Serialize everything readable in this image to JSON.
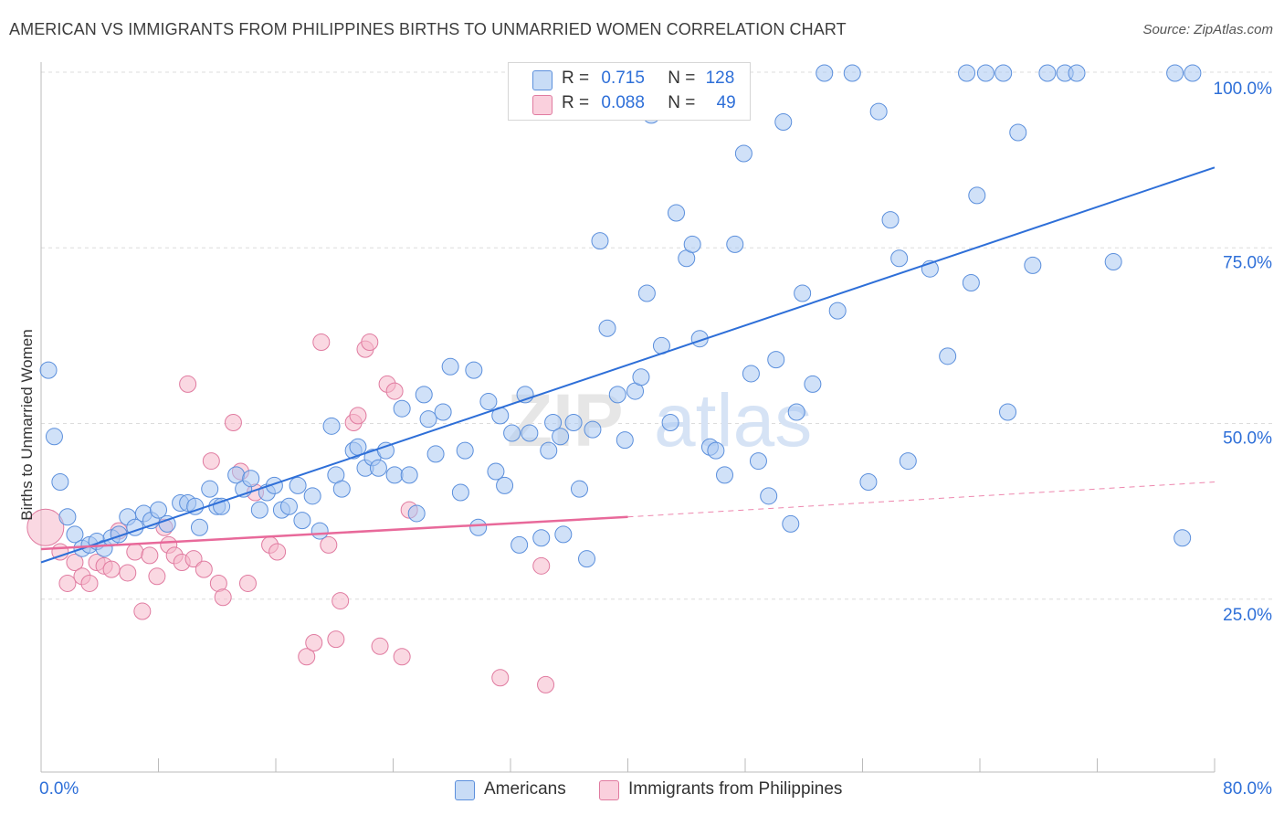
{
  "title": "AMERICAN VS IMMIGRANTS FROM PHILIPPINES BIRTHS TO UNMARRIED WOMEN CORRELATION CHART",
  "source": "Source: ZipAtlas.com",
  "watermark": {
    "zip": "ZIP",
    "atlas": "atlas"
  },
  "legend": {
    "r_label": "R =",
    "n_label": "N =",
    "rows": [
      {
        "name": "Americans",
        "r": "0.715",
        "n": "128",
        "color": "#a9c8f2",
        "edge": "#5b8fdc"
      },
      {
        "name": "Immigrants from Philippines",
        "r": "0.088",
        "n": "49",
        "color": "#f6b8cb",
        "edge": "#e07ba0"
      }
    ]
  },
  "chart_data": {
    "type": "scatter",
    "title": "AMERICAN VS IMMIGRANTS FROM PHILIPPINES BIRTHS TO UNMARRIED WOMEN CORRELATION CHART",
    "xlabel": "",
    "ylabel": "Births to Unmarried Women",
    "xlim": [
      0,
      80
    ],
    "ylim": [
      0,
      100
    ],
    "x_tick_labels": [
      "0.0%",
      "80.0%"
    ],
    "y_tick_labels": [
      "25.0%",
      "50.0%",
      "75.0%",
      "100.0%"
    ],
    "y_ticks": [
      25,
      50,
      75,
      100
    ],
    "grid": true,
    "series": [
      {
        "name": "Americans",
        "color": "#a9c8f2",
        "edge": "#5b8fdc",
        "trend": {
          "x0": 0,
          "y0": 30.0,
          "x1": 80,
          "y1": 86.5,
          "color": "#2e6fd8"
        },
        "points": [
          [
            0.5,
            57.5
          ],
          [
            0.9,
            48.0
          ],
          [
            1.3,
            41.5
          ],
          [
            1.8,
            36.5
          ],
          [
            2.3,
            34.0
          ],
          [
            2.8,
            32.0
          ],
          [
            3.3,
            32.5
          ],
          [
            3.8,
            33.0
          ],
          [
            4.3,
            32.0
          ],
          [
            4.8,
            33.5
          ],
          [
            5.3,
            34.0
          ],
          [
            5.9,
            36.5
          ],
          [
            6.4,
            35.0
          ],
          [
            7.0,
            37.0
          ],
          [
            7.5,
            36.0
          ],
          [
            8.0,
            37.5
          ],
          [
            8.6,
            35.5
          ],
          [
            9.5,
            38.5
          ],
          [
            10.0,
            38.5
          ],
          [
            10.5,
            38.0
          ],
          [
            10.8,
            35.0
          ],
          [
            11.5,
            40.5
          ],
          [
            12.0,
            38.0
          ],
          [
            12.3,
            38.0
          ],
          [
            13.3,
            42.5
          ],
          [
            13.8,
            40.5
          ],
          [
            14.3,
            42.0
          ],
          [
            14.9,
            37.5
          ],
          [
            15.4,
            40.0
          ],
          [
            15.9,
            41.0
          ],
          [
            16.4,
            37.5
          ],
          [
            16.9,
            38.0
          ],
          [
            17.5,
            41.0
          ],
          [
            17.8,
            36.0
          ],
          [
            18.5,
            39.5
          ],
          [
            19.0,
            34.5
          ],
          [
            19.8,
            49.5
          ],
          [
            20.1,
            42.5
          ],
          [
            20.5,
            40.5
          ],
          [
            21.3,
            46.0
          ],
          [
            21.6,
            46.5
          ],
          [
            22.1,
            43.5
          ],
          [
            22.6,
            45.0
          ],
          [
            23.0,
            43.5
          ],
          [
            23.5,
            46.0
          ],
          [
            24.1,
            42.5
          ],
          [
            24.6,
            52.0
          ],
          [
            25.1,
            42.5
          ],
          [
            25.6,
            37.0
          ],
          [
            26.1,
            54.0
          ],
          [
            26.4,
            50.5
          ],
          [
            26.9,
            45.5
          ],
          [
            27.4,
            51.5
          ],
          [
            27.9,
            58.0
          ],
          [
            28.6,
            40.0
          ],
          [
            28.9,
            46.0
          ],
          [
            29.5,
            57.5
          ],
          [
            29.8,
            35.0
          ],
          [
            30.5,
            53.0
          ],
          [
            31.0,
            43.0
          ],
          [
            31.3,
            51.0
          ],
          [
            31.6,
            41.0
          ],
          [
            32.1,
            48.5
          ],
          [
            32.6,
            32.5
          ],
          [
            33.0,
            54.0
          ],
          [
            33.3,
            48.5
          ],
          [
            34.1,
            33.5
          ],
          [
            34.6,
            46.0
          ],
          [
            34.9,
            50.0
          ],
          [
            35.4,
            48.0
          ],
          [
            35.6,
            34.0
          ],
          [
            36.3,
            50.0
          ],
          [
            36.7,
            40.5
          ],
          [
            37.2,
            30.5
          ],
          [
            37.6,
            49.0
          ],
          [
            38.1,
            76.0
          ],
          [
            38.6,
            63.5
          ],
          [
            39.3,
            54.0
          ],
          [
            39.8,
            47.5
          ],
          [
            40.5,
            54.5
          ],
          [
            40.9,
            56.5
          ],
          [
            41.3,
            68.5
          ],
          [
            41.6,
            94.0
          ],
          [
            42.3,
            61.0
          ],
          [
            42.9,
            50.0
          ],
          [
            43.3,
            80.0
          ],
          [
            44.0,
            73.5
          ],
          [
            44.4,
            75.5
          ],
          [
            44.9,
            62.0
          ],
          [
            45.6,
            46.5
          ],
          [
            46.0,
            46.0
          ],
          [
            46.6,
            42.5
          ],
          [
            47.3,
            75.5
          ],
          [
            47.9,
            88.5
          ],
          [
            48.4,
            57.0
          ],
          [
            48.9,
            44.5
          ],
          [
            49.6,
            39.5
          ],
          [
            50.1,
            59.0
          ],
          [
            50.6,
            93.0
          ],
          [
            51.1,
            35.5
          ],
          [
            51.5,
            51.5
          ],
          [
            51.9,
            68.5
          ],
          [
            52.6,
            55.5
          ],
          [
            53.4,
            100
          ],
          [
            54.3,
            66.0
          ],
          [
            55.3,
            100
          ],
          [
            56.4,
            41.5
          ],
          [
            57.1,
            94.5
          ],
          [
            57.9,
            79.0
          ],
          [
            58.5,
            73.5
          ],
          [
            59.1,
            44.5
          ],
          [
            60.6,
            72.0
          ],
          [
            61.8,
            59.5
          ],
          [
            63.1,
            100
          ],
          [
            63.4,
            70.0
          ],
          [
            63.8,
            82.5
          ],
          [
            64.4,
            100
          ],
          [
            65.6,
            100
          ],
          [
            65.9,
            51.5
          ],
          [
            66.6,
            91.5
          ],
          [
            67.6,
            72.5
          ],
          [
            68.6,
            100
          ],
          [
            69.8,
            100
          ],
          [
            70.6,
            100
          ],
          [
            73.1,
            73.0
          ],
          [
            77.3,
            100
          ],
          [
            77.8,
            33.5
          ],
          [
            78.5,
            100
          ]
        ]
      },
      {
        "name": "Immigrants from Philippines",
        "color": "#f6b8cb",
        "edge": "#e07ba0",
        "trend": {
          "x0": 0,
          "y0": 31.9,
          "x1": 40,
          "y1": 36.5,
          "dash_x1": 80,
          "dash_y1": 41.5,
          "color": "#e8699a"
        },
        "points": [
          [
            0.3,
            35.0
          ],
          [
            1.3,
            31.5
          ],
          [
            1.8,
            27.0
          ],
          [
            2.3,
            30.0
          ],
          [
            2.8,
            28.0
          ],
          [
            3.3,
            27.0
          ],
          [
            3.8,
            30.0
          ],
          [
            4.3,
            29.5
          ],
          [
            4.8,
            29.0
          ],
          [
            5.3,
            34.5
          ],
          [
            5.9,
            28.5
          ],
          [
            6.4,
            31.5
          ],
          [
            6.9,
            23.0
          ],
          [
            7.4,
            31.0
          ],
          [
            7.9,
            28.0
          ],
          [
            8.4,
            35.0
          ],
          [
            8.7,
            32.5
          ],
          [
            9.1,
            31.0
          ],
          [
            9.6,
            30.0
          ],
          [
            10.0,
            55.5
          ],
          [
            10.4,
            30.5
          ],
          [
            11.1,
            29.0
          ],
          [
            11.6,
            44.5
          ],
          [
            12.1,
            27.0
          ],
          [
            12.4,
            25.0
          ],
          [
            13.1,
            50.0
          ],
          [
            13.6,
            43.0
          ],
          [
            14.1,
            27.0
          ],
          [
            14.6,
            40.0
          ],
          [
            15.6,
            32.5
          ],
          [
            16.1,
            31.5
          ],
          [
            18.1,
            16.5
          ],
          [
            18.6,
            18.5
          ],
          [
            19.1,
            61.5
          ],
          [
            19.6,
            32.5
          ],
          [
            20.1,
            19.0
          ],
          [
            20.4,
            24.5
          ],
          [
            21.3,
            50.0
          ],
          [
            21.6,
            51.0
          ],
          [
            22.1,
            60.5
          ],
          [
            22.4,
            61.5
          ],
          [
            23.1,
            18.0
          ],
          [
            23.6,
            55.5
          ],
          [
            24.1,
            54.5
          ],
          [
            24.6,
            16.5
          ],
          [
            25.1,
            37.5
          ],
          [
            31.3,
            13.5
          ],
          [
            34.1,
            29.5
          ],
          [
            34.4,
            12.5
          ]
        ]
      }
    ]
  }
}
